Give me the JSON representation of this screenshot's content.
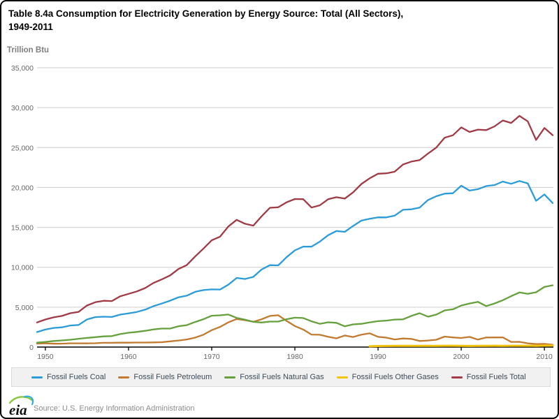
{
  "header": {
    "title_line1": "Table 8.4a Consumption for Electricity Generation by Energy Source: Total (All Sectors),",
    "title_line2": "1949-2011"
  },
  "chart_data": {
    "type": "line",
    "title": "Table 8.4a Consumption for Electricity Generation by Energy Source: Total (All Sectors), 1949-2011",
    "ylabel": "Trillion Btu",
    "xlabel": "",
    "ylim": [
      0,
      35000
    ],
    "x_range": [
      1949,
      2011
    ],
    "grid": true,
    "legend_position": "bottom",
    "y_ticks": [
      {
        "value": 0,
        "label": "0"
      },
      {
        "value": 5000,
        "label": "5,000"
      },
      {
        "value": 10000,
        "label": "10,000"
      },
      {
        "value": 15000,
        "label": "15,000"
      },
      {
        "value": 20000,
        "label": "20,000"
      },
      {
        "value": 25000,
        "label": "25,000"
      },
      {
        "value": 30000,
        "label": "30,000"
      },
      {
        "value": 35000,
        "label": "35,000"
      }
    ],
    "x_ticks": [
      1950,
      1960,
      1970,
      1980,
      1990,
      2000,
      2010
    ],
    "years": [
      1949,
      1950,
      1951,
      1952,
      1953,
      1954,
      1955,
      1956,
      1957,
      1958,
      1959,
      1960,
      1961,
      1962,
      1963,
      1964,
      1965,
      1966,
      1967,
      1968,
      1969,
      1970,
      1971,
      1972,
      1973,
      1974,
      1975,
      1976,
      1977,
      1978,
      1979,
      1980,
      1981,
      1982,
      1983,
      1984,
      1985,
      1986,
      1987,
      1988,
      1989,
      1990,
      1991,
      1992,
      1993,
      1994,
      1995,
      1996,
      1997,
      1998,
      1999,
      2000,
      2001,
      2002,
      2003,
      2004,
      2005,
      2006,
      2007,
      2008,
      2009,
      2010,
      2011
    ],
    "series": [
      {
        "name": "Fossil Fuels Coal",
        "color": "#2B9CD8",
        "width": 2.3,
        "values": [
          1880,
          2200,
          2400,
          2480,
          2700,
          2770,
          3460,
          3750,
          3810,
          3770,
          4070,
          4230,
          4400,
          4690,
          5130,
          5450,
          5820,
          6240,
          6440,
          6920,
          7140,
          7230,
          7210,
          7820,
          8660,
          8530,
          8790,
          9720,
          10260,
          10240,
          11260,
          12120,
          12580,
          12580,
          13210,
          14020,
          14540,
          14440,
          15170,
          15850,
          16070,
          16260,
          16250,
          16470,
          17200,
          17260,
          17470,
          18430,
          18900,
          19220,
          19280,
          20220,
          19610,
          19780,
          20180,
          20300,
          20740,
          20460,
          20810,
          20510,
          18320,
          19130,
          18040
        ]
      },
      {
        "name": "Fossil Fuels Petroleum",
        "color": "#C17A2F",
        "width": 2.3,
        "values": [
          430,
          470,
          420,
          430,
          470,
          470,
          460,
          480,
          530,
          530,
          550,
          550,
          570,
          570,
          590,
          610,
          720,
          820,
          950,
          1180,
          1550,
          2120,
          2530,
          3100,
          3520,
          3370,
          3170,
          3480,
          3900,
          3990,
          3280,
          2630,
          2200,
          1570,
          1540,
          1290,
          1090,
          1450,
          1260,
          1560,
          1720,
          1290,
          1180,
          950,
          1080,
          1020,
          760,
          820,
          920,
          1310,
          1210,
          1140,
          1280,
          940,
          1200,
          1210,
          1220,
          650,
          660,
          470,
          380,
          400,
          290
        ]
      },
      {
        "name": "Fossil Fuels Natural Gas",
        "color": "#66A03C",
        "width": 2.3,
        "values": [
          550,
          650,
          760,
          830,
          920,
          1040,
          1150,
          1240,
          1340,
          1370,
          1630,
          1790,
          1900,
          2040,
          2210,
          2320,
          2320,
          2610,
          2750,
          3140,
          3490,
          3930,
          3980,
          4080,
          3660,
          3440,
          3160,
          3080,
          3190,
          3190,
          3490,
          3680,
          3640,
          3230,
          2910,
          3110,
          3040,
          2600,
          2840,
          2910,
          3100,
          3250,
          3320,
          3450,
          3470,
          3900,
          4240,
          3810,
          4070,
          4590,
          4730,
          5210,
          5460,
          5670,
          5140,
          5460,
          5870,
          6380,
          6840,
          6670,
          6870,
          7530,
          7740
        ]
      },
      {
        "name": "Fossil Fuels Other Gases",
        "color": "#F2C40D",
        "width": 3,
        "values": [
          null,
          null,
          null,
          null,
          null,
          null,
          null,
          null,
          null,
          null,
          null,
          null,
          null,
          null,
          null,
          null,
          null,
          null,
          null,
          null,
          null,
          null,
          null,
          null,
          null,
          null,
          null,
          null,
          null,
          null,
          null,
          null,
          null,
          null,
          null,
          null,
          null,
          null,
          null,
          null,
          100,
          130,
          140,
          150,
          150,
          160,
          160,
          150,
          160,
          170,
          170,
          160,
          140,
          150,
          160,
          170,
          160,
          170,
          170,
          170,
          160,
          180,
          190
        ]
      },
      {
        "name": "Fossil Fuels Total",
        "color": "#A03B45",
        "width": 2.3,
        "values": [
          3090,
          3460,
          3730,
          3900,
          4240,
          4410,
          5210,
          5620,
          5800,
          5770,
          6360,
          6670,
          6970,
          7390,
          8030,
          8480,
          8990,
          9780,
          10270,
          11350,
          12330,
          13380,
          13830,
          15110,
          15940,
          15450,
          15220,
          16390,
          17460,
          17520,
          18140,
          18550,
          18530,
          17480,
          17760,
          18520,
          18780,
          18600,
          19390,
          20430,
          21150,
          21720,
          21770,
          21970,
          22870,
          23240,
          23420,
          24250,
          25000,
          26230,
          26540,
          27530,
          26950,
          27250,
          27190,
          27650,
          28390,
          28080,
          28970,
          28280,
          25950,
          27450,
          26550
        ]
      }
    ]
  },
  "footer": {
    "logo_text": "eia",
    "source": "Source: U.S. Energy Information Administration"
  }
}
